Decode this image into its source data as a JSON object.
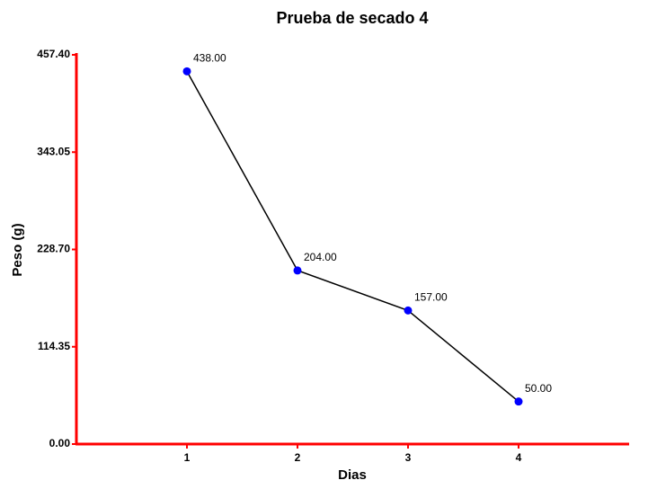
{
  "chart_data": {
    "type": "line",
    "title": "Prueba de secado 4",
    "xlabel": "Dias",
    "ylabel": "Peso (g)",
    "x": [
      1,
      2,
      3,
      4
    ],
    "xlim": [
      0,
      5
    ],
    "xticks": [
      1,
      2,
      3,
      4
    ],
    "ylim": [
      0,
      457.4
    ],
    "yticks": [
      {
        "value": 0,
        "label": "0.00"
      },
      {
        "value": 114.35,
        "label": "114.35"
      },
      {
        "value": 228.7,
        "label": "228.70"
      },
      {
        "value": 343.05,
        "label": "343.05"
      },
      {
        "value": 457.4,
        "label": "457.40"
      }
    ],
    "series": [
      {
        "color": "#0000ff",
        "line_color": "#000000",
        "values": [
          438,
          204,
          157,
          50
        ],
        "value_labels": [
          "438.00",
          "204.00",
          "157.00",
          "50.00"
        ]
      }
    ],
    "axis_color": "#ff0000"
  }
}
